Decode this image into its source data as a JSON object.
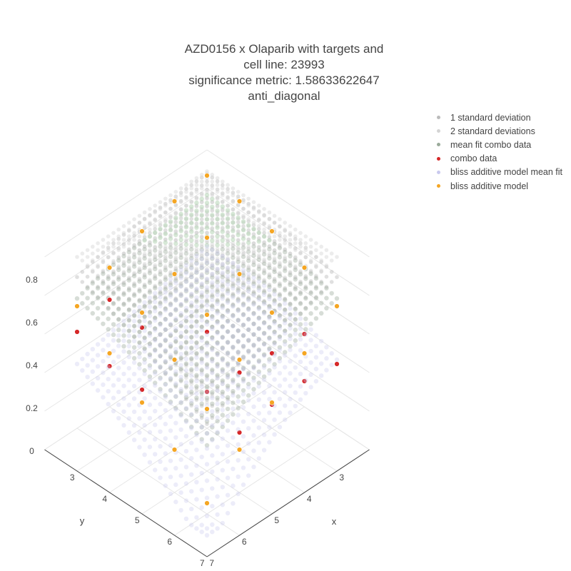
{
  "title": {
    "lines": [
      "AZD0156 x Olaparib with targets  and",
      "cell line: 23993",
      "significance metric: 1.58633622647",
      "anti_diagonal"
    ]
  },
  "chart_data": {
    "type": "scatter3d",
    "title": "AZD0156 x Olaparib with targets  and cell line: 23993 significance metric: 1.58633622647 anti_diagonal",
    "xlabel": "x",
    "ylabel": "y",
    "zlabel": "",
    "xlim": [
      2.5,
      7.5
    ],
    "ylim": [
      2.5,
      7.5
    ],
    "zlim": [
      0,
      0.9
    ],
    "x_ticks": [
      "3",
      "4",
      "5",
      "6",
      "7"
    ],
    "y_ticks": [
      "3",
      "4",
      "5",
      "6",
      "7"
    ],
    "z_ticks": [
      "0",
      "0.2",
      "0.4",
      "0.6",
      "0.8"
    ],
    "legend_position": "top-right",
    "grid": true,
    "series": [
      {
        "name": "1 standard deviation",
        "color": "#bbbbbb",
        "kind": "surface-grid",
        "surface": "mean_fit",
        "offset": 0.1
      },
      {
        "name": "2 standard deviations",
        "color": "#d4d4d4",
        "kind": "surface-grid",
        "surface": "mean_fit",
        "offset": 0.2
      },
      {
        "name": "mean fit combo data",
        "color": "#9aaa9a",
        "kind": "surface-grid",
        "surface": "mean_fit",
        "offset": 0
      },
      {
        "name": "combo data",
        "color": "#d62728",
        "kind": "points",
        "points": [
          [
            3,
            7,
            0.55
          ],
          [
            4,
            6,
            0.57
          ],
          [
            4,
            7,
            0.49
          ],
          [
            5,
            5,
            0.55
          ],
          [
            6,
            4,
            0.45
          ],
          [
            6,
            3,
            0.44
          ],
          [
            6,
            6,
            0.47
          ],
          [
            7,
            3,
            0.4
          ],
          [
            6,
            5,
            0.46
          ],
          [
            7,
            4,
            0.42
          ],
          [
            5,
            7,
            0.48
          ],
          [
            7,
            5,
            0.41
          ],
          [
            5,
            6,
            0.52
          ],
          [
            3,
            6,
            0.6
          ],
          [
            7,
            6,
            0.38
          ]
        ]
      },
      {
        "name": "bliss additive model mean fit",
        "color": "#c9c9ee",
        "kind": "surface-grid",
        "surface": "bliss_fit",
        "offset": 0
      },
      {
        "name": "bliss additive model",
        "color": "#f5a623",
        "kind": "points",
        "points": [
          [
            3,
            3,
            0.88
          ],
          [
            3,
            4,
            0.86
          ],
          [
            4,
            3,
            0.86
          ],
          [
            3,
            5,
            0.82
          ],
          [
            5,
            3,
            0.82
          ],
          [
            4,
            4,
            0.79
          ],
          [
            3,
            6,
            0.75
          ],
          [
            6,
            3,
            0.75
          ],
          [
            4,
            5,
            0.72
          ],
          [
            5,
            4,
            0.72
          ],
          [
            3,
            7,
            0.67
          ],
          [
            7,
            3,
            0.67
          ],
          [
            4,
            6,
            0.64
          ],
          [
            6,
            4,
            0.64
          ],
          [
            5,
            5,
            0.63
          ],
          [
            4,
            7,
            0.55
          ],
          [
            7,
            4,
            0.55
          ],
          [
            5,
            6,
            0.52
          ],
          [
            6,
            5,
            0.52
          ],
          [
            5,
            7,
            0.42
          ],
          [
            7,
            5,
            0.42
          ],
          [
            6,
            6,
            0.39
          ],
          [
            6,
            7,
            0.3
          ],
          [
            7,
            6,
            0.3
          ],
          [
            7,
            7,
            0.15
          ]
        ]
      }
    ]
  }
}
